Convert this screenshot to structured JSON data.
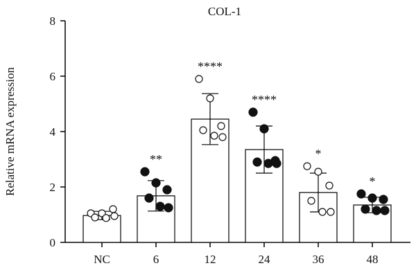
{
  "chart_data": {
    "type": "bar",
    "title": "COL-1",
    "xlabel": "",
    "ylabel": "Relative mRNA expression",
    "ylim": [
      0,
      8
    ],
    "yticks": [
      0,
      2,
      4,
      6,
      8
    ],
    "categories": [
      "NC",
      "6",
      "12",
      "24",
      "36",
      "48"
    ],
    "values": [
      0.97,
      1.68,
      4.45,
      3.35,
      1.8,
      1.35
    ],
    "errors": [
      0.15,
      0.55,
      0.92,
      0.85,
      0.7,
      0.28
    ],
    "significance": [
      "",
      "**",
      "****",
      "****",
      "*",
      "*"
    ],
    "marker_fill": [
      "open",
      "filled",
      "open",
      "filled",
      "open",
      "filled"
    ],
    "points": [
      [
        1.05,
        1.05,
        1.2,
        0.9,
        0.88,
        0.95
      ],
      [
        2.55,
        2.15,
        1.9,
        1.6,
        1.3,
        1.25
      ],
      [
        5.9,
        5.2,
        4.2,
        4.05,
        3.85,
        3.8
      ],
      [
        4.7,
        4.1,
        2.95,
        2.9,
        2.85,
        2.85
      ],
      [
        2.75,
        2.55,
        2.05,
        1.5,
        1.1,
        1.1
      ],
      [
        1.75,
        1.6,
        1.55,
        1.2,
        1.15,
        1.15
      ]
    ]
  }
}
